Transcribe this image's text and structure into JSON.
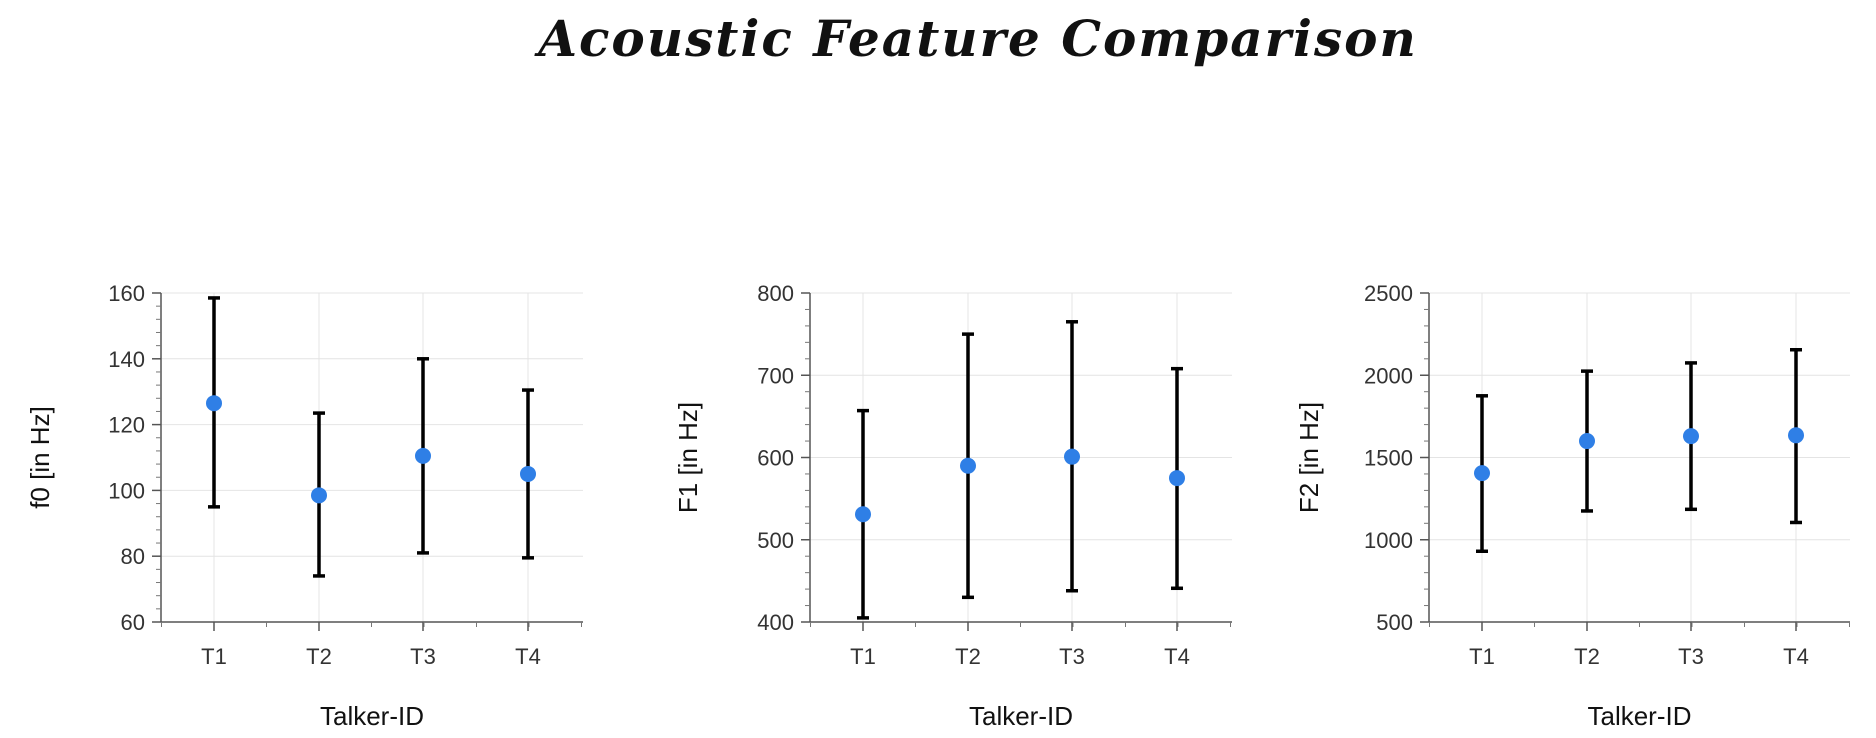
{
  "figure": {
    "title": "Acoustic Feature Comparison"
  },
  "colors": {
    "marker": "#2f7fe6",
    "errorbar": "#000000",
    "grid": "#e4e4e4"
  },
  "chart_data": [
    {
      "type": "scatter",
      "title": "",
      "xlabel": "Talker-ID",
      "ylabel": "f0 [in Hz]",
      "categories": [
        "T1",
        "T2",
        "T3",
        "T4"
      ],
      "values": [
        126.5,
        98.5,
        110.5,
        105
      ],
      "error_low": [
        95,
        74,
        81,
        79.5
      ],
      "error_high": [
        158.5,
        123.5,
        140,
        130.5
      ],
      "ylim": [
        60,
        160
      ],
      "yticks": [
        60,
        80,
        100,
        120,
        140,
        160
      ],
      "grid": true
    },
    {
      "type": "scatter",
      "title": "",
      "xlabel": "Talker-ID",
      "ylabel": "F1 [in Hz]",
      "categories": [
        "T1",
        "T2",
        "T3",
        "T4"
      ],
      "values": [
        531,
        590,
        601,
        575
      ],
      "error_low": [
        405,
        430,
        438,
        441
      ],
      "error_high": [
        657,
        750,
        765,
        708
      ],
      "ylim": [
        400,
        800
      ],
      "yticks": [
        400,
        500,
        600,
        700,
        800
      ],
      "grid": true
    },
    {
      "type": "scatter",
      "title": "",
      "xlabel": "Talker-ID",
      "ylabel": "F2 [in Hz]",
      "categories": [
        "T1",
        "T2",
        "T3",
        "T4"
      ],
      "values": [
        1405,
        1600,
        1630,
        1635
      ],
      "error_low": [
        930,
        1175,
        1185,
        1105
      ],
      "error_high": [
        1875,
        2025,
        2075,
        2155
      ],
      "ylim": [
        500,
        2500
      ],
      "yticks": [
        500,
        1000,
        1500,
        2000,
        2500
      ],
      "grid": true
    }
  ]
}
